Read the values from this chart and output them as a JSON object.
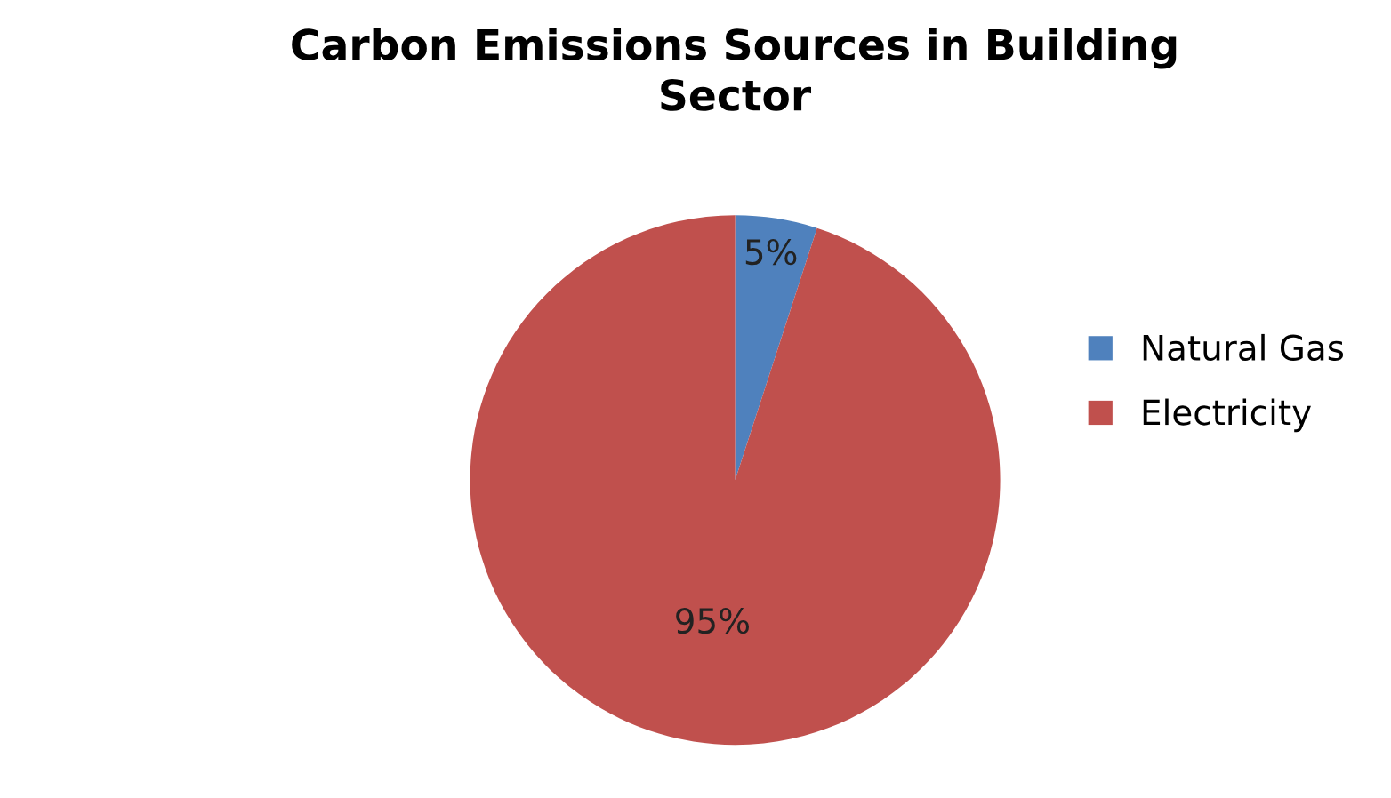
{
  "chart_data": {
    "type": "pie",
    "title": "Carbon Emissions Sources in Building Sector",
    "categories": [
      "Natural Gas",
      "Electricity"
    ],
    "values": [
      5,
      95
    ],
    "colors": [
      "#4f81bd",
      "#c0504d"
    ],
    "value_labels": [
      "5%",
      "95%"
    ],
    "legend": "right"
  }
}
